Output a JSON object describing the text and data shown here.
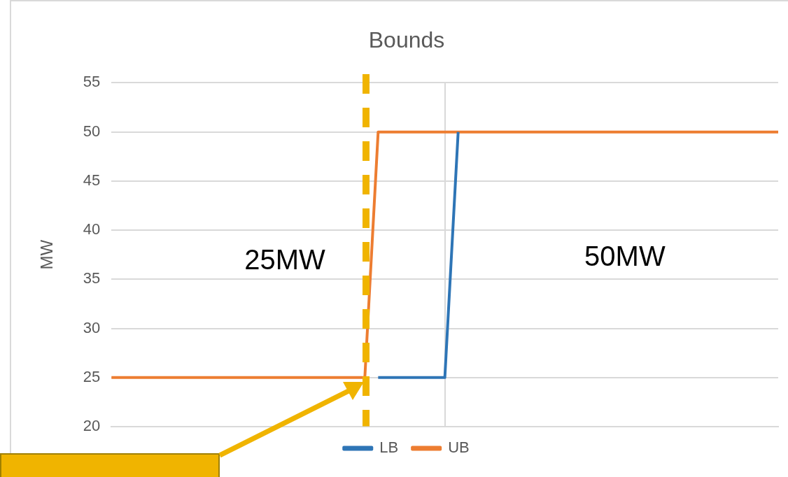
{
  "chart_data": {
    "type": "line",
    "title": "Bounds",
    "ylabel": "MW",
    "categories": [
      null,
      null,
      null,
      null,
      null,
      null,
      null,
      null,
      null,
      null,
      null,
      null,
      null,
      null,
      null,
      null,
      null,
      null,
      null,
      null,
      null,
      null,
      null,
      null,
      null,
      null,
      null,
      null,
      null,
      null,
      null,
      null,
      null,
      null,
      null,
      null,
      null,
      null,
      null,
      null,
      null,
      null,
      null,
      null,
      null,
      null,
      null,
      null,
      null,
      null,
      null
    ],
    "series": [
      {
        "name": "LB",
        "color": "#2e75b6",
        "values": [
          null,
          null,
          null,
          null,
          null,
          null,
          null,
          null,
          null,
          null,
          null,
          null,
          null,
          null,
          null,
          null,
          null,
          null,
          null,
          null,
          25,
          25,
          25,
          25,
          25,
          25,
          50,
          null,
          null,
          null,
          null,
          null,
          null,
          null,
          null,
          null,
          null,
          null,
          null,
          null,
          null,
          null,
          null,
          null,
          null,
          null,
          null,
          null,
          null,
          null,
          null
        ]
      },
      {
        "name": "UB",
        "color": "#ed7d31",
        "values": [
          25,
          25,
          25,
          25,
          25,
          25,
          25,
          25,
          25,
          25,
          25,
          25,
          25,
          25,
          25,
          25,
          25,
          25,
          25,
          25,
          50,
          50,
          50,
          50,
          50,
          50,
          50,
          50,
          50,
          50,
          50,
          50,
          50,
          50,
          50,
          50,
          50,
          50,
          50,
          50,
          50,
          50,
          50,
          50,
          50,
          50,
          50,
          50,
          50,
          50,
          50
        ]
      }
    ],
    "ylim": [
      20,
      55
    ],
    "yticks": [
      20,
      25,
      30,
      35,
      40,
      45,
      50,
      55
    ],
    "tick_labels": "y",
    "grid": true,
    "legend": "bottom",
    "marker": "none",
    "line_style": "solid",
    "annotations": [
      "25MW",
      "50MW"
    ]
  }
}
